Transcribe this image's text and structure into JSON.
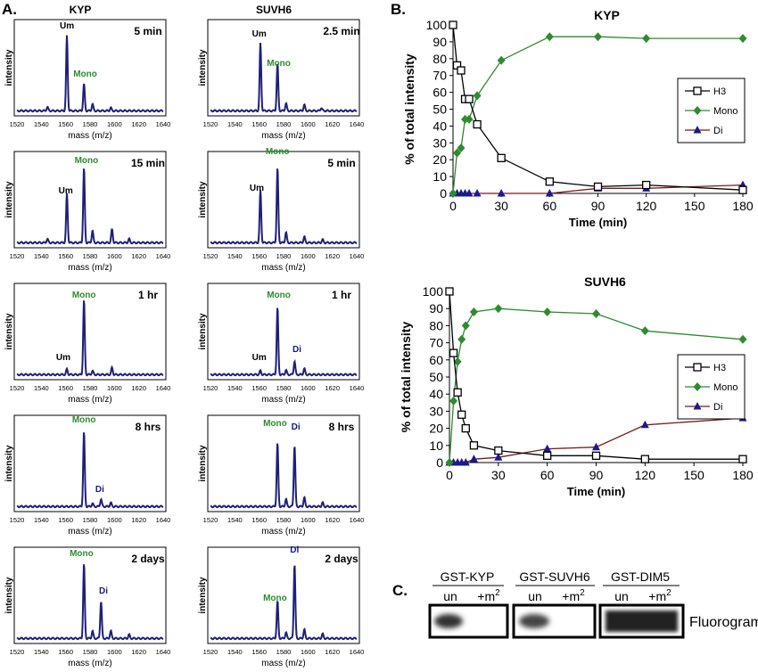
{
  "panel_letters": {
    "a": "A.",
    "b": "B.",
    "c": "C."
  },
  "columns": {
    "kyp": "KYP",
    "suvh6": "SUVH6"
  },
  "spectra": {
    "xlabel": "mass (m/z)",
    "ylabel": "intensity",
    "ticks": [
      "1520",
      "1540",
      "1560",
      "1580",
      "1600",
      "1620",
      "1640"
    ],
    "peak_labels": {
      "um": "Um",
      "mono": "Mono",
      "di": "Di"
    },
    "times": [
      [
        "5 min",
        "2.5 min"
      ],
      [
        "15 min",
        "5 min"
      ],
      [
        "1 hr",
        "1 hr"
      ],
      [
        "8 hrs",
        "8 hrs"
      ],
      [
        "2 days",
        "2 days"
      ]
    ]
  },
  "kinetics": {
    "ylabel": "% of total intensity",
    "xlabel": "Time (min)",
    "x_ticks": [
      "0",
      "30",
      "60",
      "90",
      "120",
      "150",
      "180"
    ],
    "y_ticks": [
      "0",
      "10",
      "20",
      "30",
      "40",
      "50",
      "60",
      "70",
      "80",
      "90",
      "100"
    ],
    "legend": [
      "H3",
      "Mono",
      "Di"
    ]
  },
  "fluorogram": {
    "enzymes": [
      "GST-KYP",
      "GST-SUVH6",
      "GST-DIM5"
    ],
    "lane_un": "un",
    "lane_m2": "+m",
    "lane_m2_sup": "2",
    "label": "Fluorogram"
  },
  "colors": {
    "trace": "#1f1f7a",
    "mono": "#2e8b2e",
    "di": "#1a1a8c",
    "h3": "#000000",
    "di_line": "#7a1a1a"
  },
  "chart_data": [
    {
      "type": "line",
      "title": "KYP",
      "xlabel": "Time (min)",
      "ylabel": "% of total intensity",
      "xlim": [
        0,
        180
      ],
      "ylim": [
        0,
        100
      ],
      "series": [
        {
          "name": "H3",
          "x": [
            0,
            2.5,
            5,
            7.5,
            10,
            15,
            30,
            60,
            90,
            120,
            180
          ],
          "values": [
            100,
            76,
            73,
            56,
            56,
            41,
            21,
            7,
            4,
            5,
            2
          ]
        },
        {
          "name": "Mono",
          "x": [
            0,
            2.5,
            5,
            7.5,
            10,
            15,
            30,
            60,
            90,
            120,
            180
          ],
          "values": [
            0,
            24,
            27,
            44,
            44,
            58,
            79,
            93,
            93,
            92,
            92
          ]
        },
        {
          "name": "Di",
          "x": [
            0,
            2.5,
            5,
            7.5,
            10,
            15,
            30,
            60,
            90,
            120,
            180
          ],
          "values": [
            0,
            0,
            0,
            0,
            0,
            0,
            0,
            0,
            3,
            3,
            5
          ]
        }
      ]
    },
    {
      "type": "line",
      "title": "SUVH6",
      "xlabel": "Time (min)",
      "ylabel": "% of total intensity",
      "xlim": [
        0,
        180
      ],
      "ylim": [
        0,
        100
      ],
      "series": [
        {
          "name": "H3",
          "x": [
            0,
            2.5,
            5,
            7.5,
            10,
            15,
            30,
            60,
            90,
            120,
            180
          ],
          "values": [
            100,
            64,
            41,
            28,
            20,
            10,
            7,
            4,
            4,
            2,
            2
          ]
        },
        {
          "name": "Mono",
          "x": [
            0,
            2.5,
            5,
            7.5,
            10,
            15,
            30,
            60,
            90,
            120,
            180
          ],
          "values": [
            0,
            36,
            59,
            72,
            80,
            88,
            90,
            88,
            87,
            77,
            72
          ]
        },
        {
          "name": "Di",
          "x": [
            0,
            2.5,
            5,
            7.5,
            10,
            15,
            30,
            60,
            90,
            120,
            180
          ],
          "values": [
            0,
            0,
            0,
            0,
            0,
            2,
            3,
            8,
            9,
            22,
            26
          ]
        }
      ]
    }
  ]
}
